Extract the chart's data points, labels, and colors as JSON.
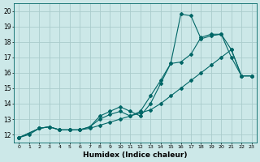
{
  "xlabel": "Humidex (Indice chaleur)",
  "bg_color": "#cce8e8",
  "grid_color": "#aacccc",
  "line_color": "#006666",
  "xlim": [
    -0.5,
    23.5
  ],
  "ylim": [
    11.5,
    20.5
  ],
  "xticks": [
    0,
    1,
    2,
    3,
    4,
    5,
    6,
    7,
    8,
    9,
    10,
    11,
    12,
    13,
    14,
    15,
    16,
    17,
    18,
    19,
    20,
    21,
    22,
    23
  ],
  "yticks": [
    12,
    13,
    14,
    15,
    16,
    17,
    18,
    19,
    20
  ],
  "line1_x": [
    0,
    1,
    2,
    3,
    4,
    5,
    6,
    7,
    8,
    9,
    10,
    11,
    12,
    13,
    14,
    15,
    16,
    17,
    18,
    19,
    20,
    21,
    22,
    23
  ],
  "line1_y": [
    11.8,
    12.0,
    12.4,
    12.5,
    12.3,
    12.3,
    12.3,
    12.4,
    12.6,
    12.8,
    13.0,
    13.2,
    13.4,
    13.6,
    14.0,
    14.5,
    15.0,
    15.5,
    16.0,
    16.5,
    17.0,
    17.5,
    15.8,
    15.8
  ],
  "line2_x": [
    0,
    2,
    3,
    4,
    5,
    6,
    7,
    8,
    9,
    10,
    11,
    12,
    13,
    14,
    15,
    16,
    17,
    18,
    19,
    20,
    21,
    22,
    23
  ],
  "line2_y": [
    11.8,
    12.4,
    12.5,
    12.3,
    12.3,
    12.3,
    12.5,
    13.2,
    13.5,
    13.8,
    13.5,
    13.2,
    14.0,
    15.3,
    16.6,
    19.8,
    19.7,
    18.2,
    18.4,
    18.5,
    17.0,
    15.8,
    15.8
  ],
  "line3_x": [
    0,
    2,
    3,
    4,
    5,
    6,
    7,
    8,
    9,
    10,
    11,
    12,
    13,
    14,
    15,
    16,
    17,
    18,
    19,
    20,
    21,
    22,
    23
  ],
  "line3_y": [
    11.8,
    12.4,
    12.5,
    12.3,
    12.3,
    12.3,
    12.5,
    13.0,
    13.3,
    13.5,
    13.2,
    13.5,
    14.5,
    15.5,
    16.6,
    16.7,
    17.2,
    18.3,
    18.5,
    18.5,
    17.5,
    15.8,
    15.8
  ]
}
